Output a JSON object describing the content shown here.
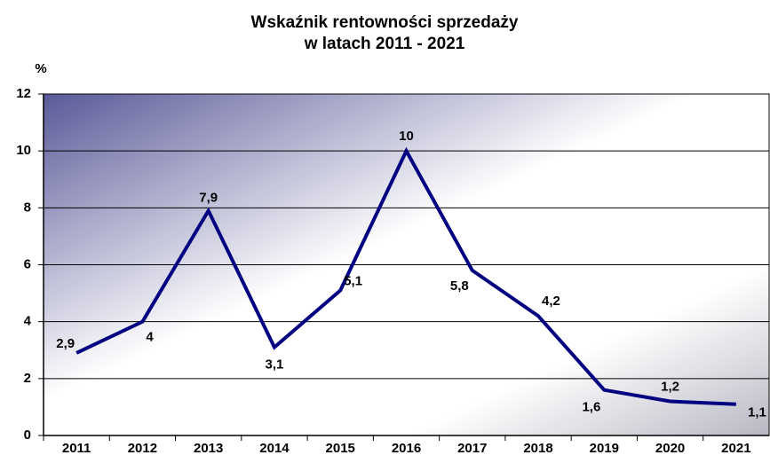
{
  "chart_data": {
    "type": "line",
    "title": [
      "Wskaźnik rentowności sprzedaży",
      "w latach 2011 - 2021"
    ],
    "y_label": "%",
    "categories": [
      "2011",
      "2012",
      "2013",
      "2014",
      "2015",
      "2016",
      "2017",
      "2018",
      "2019",
      "2020",
      "2021"
    ],
    "series": [
      {
        "name": "Wskaźnik rentowności sprzedaży",
        "color": "#000080",
        "values": [
          2.9,
          4,
          7.9,
          3.1,
          5.1,
          10,
          5.8,
          4.2,
          1.6,
          1.2,
          1.1
        ],
        "value_labels": [
          "2,9",
          "4",
          "7,9",
          "3,1",
          "5,1",
          "10",
          "5,8",
          "4,2",
          "1,6",
          "1,2",
          "1,1"
        ]
      }
    ],
    "ylim": [
      0,
      12
    ],
    "yticks": [
      0,
      2,
      4,
      6,
      8,
      10,
      12
    ],
    "grid": true
  }
}
